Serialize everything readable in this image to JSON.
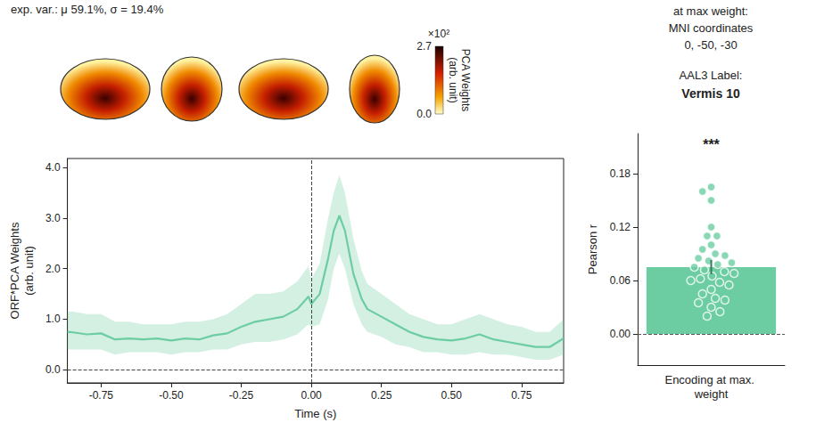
{
  "chart_data": [
    {
      "type": "line",
      "title": "exp. var.: μ 59.1%, σ = 19.4%",
      "x": [
        -0.87,
        -0.85,
        -0.8,
        -0.75,
        -0.7,
        -0.65,
        -0.6,
        -0.55,
        -0.5,
        -0.45,
        -0.4,
        -0.35,
        -0.3,
        -0.25,
        -0.2,
        -0.15,
        -0.1,
        -0.05,
        -0.01,
        0.0,
        0.03,
        0.06,
        0.08,
        0.1,
        0.12,
        0.15,
        0.18,
        0.2,
        0.25,
        0.3,
        0.35,
        0.4,
        0.45,
        0.5,
        0.55,
        0.6,
        0.65,
        0.7,
        0.75,
        0.8,
        0.85,
        0.9
      ],
      "values": [
        0.75,
        0.74,
        0.7,
        0.72,
        0.6,
        0.62,
        0.6,
        0.62,
        0.58,
        0.62,
        0.6,
        0.68,
        0.72,
        0.85,
        0.95,
        1.0,
        1.05,
        1.2,
        1.45,
        1.3,
        1.5,
        2.2,
        2.75,
        3.05,
        2.75,
        1.9,
        1.4,
        1.2,
        1.05,
        0.9,
        0.75,
        0.65,
        0.6,
        0.58,
        0.62,
        0.7,
        0.6,
        0.55,
        0.5,
        0.45,
        0.45,
        0.62
      ],
      "band_lower": [
        0.4,
        0.4,
        0.4,
        0.4,
        0.3,
        0.35,
        0.35,
        0.35,
        0.3,
        0.35,
        0.35,
        0.4,
        0.4,
        0.5,
        0.55,
        0.55,
        0.6,
        0.7,
        0.9,
        0.85,
        0.9,
        1.4,
        2.0,
        2.3,
        2.0,
        1.3,
        0.9,
        0.75,
        0.65,
        0.5,
        0.45,
        0.35,
        0.35,
        0.3,
        0.3,
        0.35,
        0.3,
        0.3,
        0.25,
        0.2,
        0.2,
        0.3
      ],
      "band_upper": [
        1.15,
        1.15,
        1.1,
        1.1,
        0.95,
        0.95,
        0.9,
        0.9,
        0.9,
        0.95,
        0.95,
        1.0,
        1.1,
        1.3,
        1.5,
        1.5,
        1.55,
        1.75,
        2.05,
        1.8,
        2.1,
        3.0,
        3.5,
        3.85,
        3.5,
        2.6,
        1.95,
        1.7,
        1.5,
        1.3,
        1.1,
        1.0,
        0.9,
        0.9,
        1.0,
        1.1,
        1.0,
        0.9,
        0.85,
        0.75,
        0.75,
        1.0
      ],
      "color": "#6dcda2",
      "x_label": "Time (s)",
      "y_label": "ORF*PCA Weights (arb. unit)",
      "xlim": [
        -0.87,
        0.9
      ],
      "xticks": [
        -0.75,
        {
          "value": -0.5,
          "label": "-0.50"
        },
        -0.25,
        {
          "value": 0,
          "label": "0.00"
        },
        0.25,
        {
          "value": 0.5,
          "label": "0.50"
        },
        0.75
      ],
      "ylim": [
        -0.26,
        4.18
      ],
      "yticks": [
        {
          "value": 0,
          "label": "0.0"
        },
        {
          "value": 1,
          "label": "1.0"
        },
        {
          "value": 2,
          "label": "2.0"
        },
        {
          "value": 3,
          "label": "3.0"
        },
        {
          "value": 4,
          "label": "4.0"
        }
      ],
      "reference_lines": {
        "x": 0,
        "y": 0
      },
      "grid": false,
      "colorbar": {
        "range": [
          0,
          2.7
        ],
        "ticks": [
          {
            "value": 0,
            "label": "0.0"
          },
          2.7
        ],
        "multiplier_label": "×10²",
        "label": "PCA Weights (arb. unit)"
      }
    },
    {
      "type": "bar",
      "title": "at max weight:",
      "annotations": [
        "MNI coordinates",
        "0, -50, -30",
        "AAL3 Label:",
        "Vermis 10"
      ],
      "significance": "***",
      "categories": [
        "Encoding at max. weight"
      ],
      "values": [
        0.075
      ],
      "errors": [
        0.008
      ],
      "points": [
        0.165,
        0.16,
        0.15,
        0.12,
        0.11,
        0.11,
        0.1,
        0.095,
        0.09,
        0.088,
        0.085,
        0.082,
        0.08,
        0.078,
        0.075,
        0.072,
        0.07,
        0.068,
        0.065,
        0.062,
        0.06,
        0.058,
        0.055,
        0.05,
        0.045,
        0.04,
        0.038,
        0.035,
        0.03,
        0.025,
        0.02
      ],
      "color": "#6dcda2",
      "y_label": "Pearson r",
      "ylim": [
        -0.035,
        0.225
      ],
      "yticks": [
        {
          "value": 0,
          "label": "0.00"
        },
        0.06,
        0.12,
        0.18
      ],
      "reference_lines": {
        "y": 0
      },
      "grid": false
    }
  ]
}
